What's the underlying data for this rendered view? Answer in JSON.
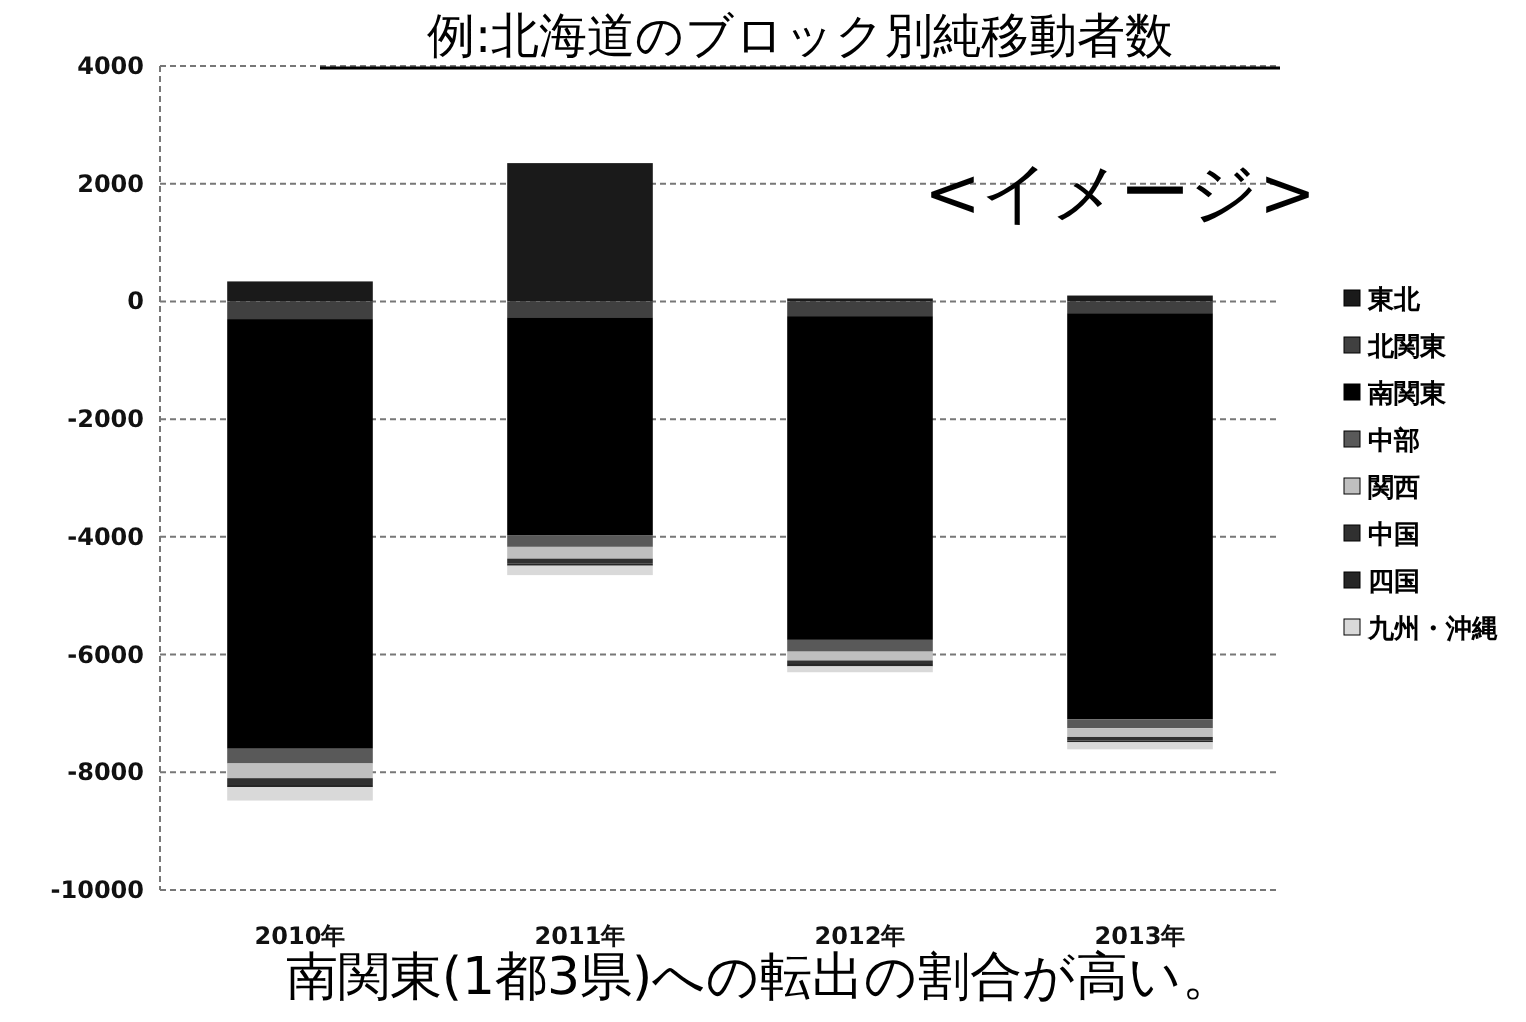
{
  "chart_data": {
    "type": "bar",
    "stacked": true,
    "title": "例:北海道のブロック別純移動者数",
    "annotations": [
      "<イメージ>",
      "南関東(1都3県)への転出の割合が高い。"
    ],
    "categories": [
      "2010年",
      "2011年",
      "2012年",
      "2013年"
    ],
    "ylim": [
      -10000,
      4000
    ],
    "yticks": [
      -10000,
      -8000,
      -6000,
      -4000,
      -2000,
      0,
      2000,
      4000
    ],
    "grid": "y",
    "legend": "right",
    "series": [
      {
        "name": "東北",
        "color": "#1a1a1a",
        "values": [
          340,
          2350,
          50,
          100
        ]
      },
      {
        "name": "北関東",
        "color": "#404040",
        "values": [
          -300,
          -270,
          -250,
          -200
        ]
      },
      {
        "name": "南関東",
        "color": "#000000",
        "values": [
          -7300,
          -3700,
          -5500,
          -6900
        ]
      },
      {
        "name": "中部",
        "color": "#595959",
        "values": [
          -250,
          -200,
          -200,
          -150
        ]
      },
      {
        "name": "関西",
        "color": "#bfbfbf",
        "values": [
          -250,
          -200,
          -150,
          -150
        ]
      },
      {
        "name": "中国",
        "color": "#303030",
        "values": [
          -100,
          -80,
          -60,
          -60
        ]
      },
      {
        "name": "四国",
        "color": "#262626",
        "values": [
          -50,
          -40,
          -40,
          -30
        ]
      },
      {
        "name": "九州・沖縄",
        "color": "#d9d9d9",
        "values": [
          -230,
          -160,
          -100,
          -120
        ]
      }
    ]
  }
}
